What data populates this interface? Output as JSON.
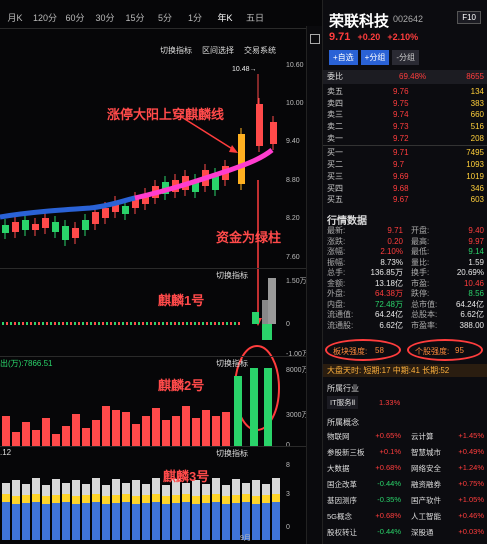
{
  "periods": [
    "月K",
    "120分",
    "60分",
    "30分",
    "15分",
    "5分",
    "1分",
    "年K",
    "五日"
  ],
  "active_period": "年K",
  "chart_toolbar": [
    "切换指标",
    "区间选择",
    "交易系统"
  ],
  "main_axis": [
    "10.60",
    "10.00",
    "9.40",
    "8.80",
    "8.20",
    "7.60"
  ],
  "max_label": "10.48→",
  "annotations": {
    "a1": "涨停大阳上穿麒麟线",
    "a2": "资金为绿柱",
    "a3": "麒麟1号",
    "a4": "麒麟2号",
    "a5": "麒麟3号"
  },
  "sub1": {
    "switch": "切换指标",
    "axis": [
      "1.50万",
      "0",
      "-1.00万"
    ]
  },
  "sub2": {
    "switch": "切换指标",
    "label": "出(万):7866.51",
    "axis": [
      "8000万",
      "3000万",
      "0"
    ]
  },
  "sub3": {
    "switch": "切换指标",
    "label": ".12",
    "axis": [
      "8",
      "3",
      "0"
    ]
  },
  "month_label": "9月",
  "colors": {
    "up": "#ff4a4a",
    "down": "#2ad36a",
    "accent": "#2a62d6",
    "magenta": "#ff3dcf"
  },
  "stock": {
    "name": "荣联科技",
    "code": "002642",
    "f10": "F10",
    "price": "9.71",
    "change": "+0.20",
    "pct": "+2.10%",
    "btn_add": "+自选",
    "btn_group": "+分组",
    "btn_split": "-分组"
  },
  "ratio": {
    "label": "委比",
    "pct": "69.48%",
    "vol": "8655"
  },
  "book": {
    "sell": [
      {
        "label": "卖五",
        "price": "9.76",
        "vol": "134"
      },
      {
        "label": "卖四",
        "price": "9.75",
        "vol": "383"
      },
      {
        "label": "卖三",
        "price": "9.74",
        "vol": "660"
      },
      {
        "label": "卖二",
        "price": "9.73",
        "vol": "516"
      },
      {
        "label": "卖一",
        "price": "9.72",
        "vol": "208"
      }
    ],
    "buy": [
      {
        "label": "买一",
        "price": "9.71",
        "vol": "7495"
      },
      {
        "label": "买二",
        "price": "9.7",
        "vol": "1093"
      },
      {
        "label": "买三",
        "price": "9.69",
        "vol": "1019"
      },
      {
        "label": "买四",
        "price": "9.68",
        "vol": "346"
      },
      {
        "label": "买五",
        "price": "9.67",
        "vol": "603"
      }
    ]
  },
  "market_title": "行情数据",
  "stats": [
    {
      "k1": "最新:",
      "v1": "9.71",
      "c1": "red",
      "k2": "开盘:",
      "v2": "9.40",
      "c2": "red"
    },
    {
      "k1": "涨跌:",
      "v1": "0.20",
      "c1": "red",
      "k2": "最高:",
      "v2": "9.97",
      "c2": "red"
    },
    {
      "k1": "涨幅:",
      "v1": "2.10%",
      "c1": "red",
      "k2": "最低:",
      "v2": "9.14",
      "c2": "green"
    },
    {
      "k1": "振幅:",
      "v1": "8.73%",
      "c1": "white",
      "k2": "量比:",
      "v2": "1.59",
      "c2": "white"
    },
    {
      "k1": "总手:",
      "v1": "136.85万",
      "c1": "white",
      "k2": "换手:",
      "v2": "20.69%",
      "c2": "white"
    },
    {
      "k1": "金额:",
      "v1": "13.18亿",
      "c1": "white",
      "k2": "市盈:",
      "v2": "10.46",
      "c2": "red"
    },
    {
      "k1": "外盘:",
      "v1": "64.38万",
      "c1": "red",
      "k2": "跌停:",
      "v2": "8.56",
      "c2": "green"
    },
    {
      "k1": "内盘:",
      "v1": "72.48万",
      "c1": "green",
      "k2": "总市值:",
      "v2": "64.24亿",
      "c2": "white"
    },
    {
      "k1": "流通值:",
      "v1": "64.24亿",
      "c1": "white",
      "k2": "总股本:",
      "v2": "6.62亿",
      "c2": "white"
    },
    {
      "k1": "流通股:",
      "v1": "6.62亿",
      "c1": "white",
      "k2": "市盈率:",
      "v2": "388.00",
      "c2": "white"
    }
  ],
  "strength": {
    "sector_label": "板块强度:",
    "sector_val": "58",
    "stock_label": "个股强度:",
    "stock_val": "95"
  },
  "big_order": "大盘天时:  短期:17  中期:41  长期:52",
  "industry_title": "所属行业",
  "industry": {
    "name": "IT服务Ⅱ",
    "val": "1.33%"
  },
  "concept_title": "所属概念",
  "concepts": [
    {
      "n1": "物联网",
      "v1": "+0.65%",
      "c1": "red",
      "n2": "云计算",
      "v2": "+1.45%",
      "c2": "red"
    },
    {
      "n1": "参股新三板",
      "v1": "+0.1%",
      "c1": "red",
      "n2": "智慧城市",
      "v2": "+0.49%",
      "c2": "red"
    },
    {
      "n1": "大数据",
      "v1": "+0.68%",
      "c1": "red",
      "n2": "网络安全",
      "v2": "+1.24%",
      "c2": "red"
    },
    {
      "n1": "国企改革",
      "v1": "-0.44%",
      "c1": "green",
      "n2": "融资融券",
      "v2": "+0.75%",
      "c2": "red"
    },
    {
      "n1": "基因测序",
      "v1": "-0.35%",
      "c1": "green",
      "n2": "国产软件",
      "v2": "+1.05%",
      "c2": "red"
    },
    {
      "n1": "5G概念",
      "v1": "+0.68%",
      "c1": "red",
      "n2": "人工智能",
      "v2": "+0.46%",
      "c2": "red"
    },
    {
      "n1": "股权转让",
      "v1": "-0.44%",
      "c1": "green",
      "n2": "深股通",
      "v2": "+0.03%",
      "c2": "red"
    }
  ]
}
